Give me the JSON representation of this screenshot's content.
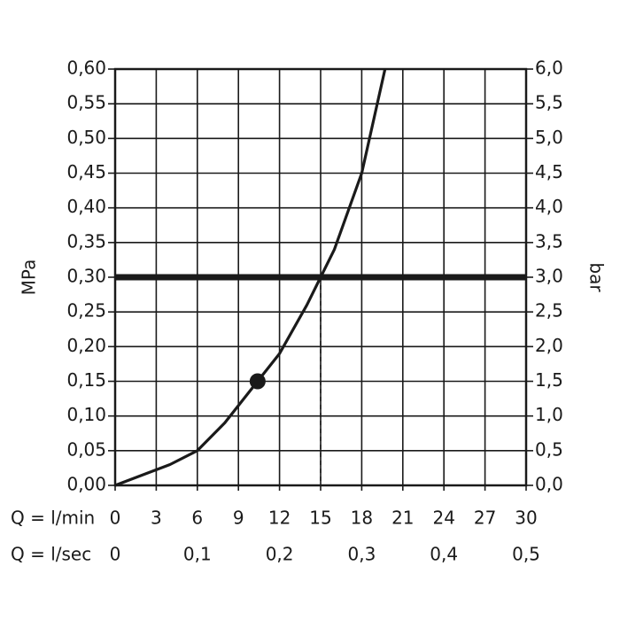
{
  "chart_data": {
    "type": "line",
    "ylabel": "MPa",
    "y2label": "bar",
    "xlabel": "Q = l/min",
    "x2label": "Q = l/sec",
    "series": [
      {
        "color": "#1a1a1a",
        "x": [
          0,
          2,
          4,
          6,
          8,
          10,
          12,
          14,
          15,
          16,
          18,
          19.7
        ],
        "values": [
          0,
          0.015,
          0.03,
          0.05,
          0.09,
          0.14,
          0.19,
          0.26,
          0.3,
          0.34,
          0.45,
          0.6
        ]
      }
    ],
    "highlight": {
      "x": 10.4,
      "y": 0.15
    },
    "hline": 0.3,
    "vline": 15,
    "xlim": [
      0,
      30
    ],
    "xticks": [
      0,
      3,
      6,
      9,
      12,
      15,
      18,
      21,
      24,
      27,
      30
    ],
    "x2lim": [
      0,
      0.5
    ],
    "x2ticks": [
      0,
      {
        "value": 0.1,
        "label": "0,1"
      },
      {
        "value": 0.2,
        "label": "0,2"
      },
      {
        "value": 0.3,
        "label": "0,3"
      },
      {
        "value": 0.4,
        "label": "0,4"
      },
      {
        "value": 0.5,
        "label": "0,5"
      }
    ],
    "ylim": [
      0,
      0.6
    ],
    "yticks": [
      {
        "value": 0,
        "label": "0,00"
      },
      {
        "value": 0.05,
        "label": "0,05"
      },
      {
        "value": 0.1,
        "label": "0,10"
      },
      {
        "value": 0.15,
        "label": "0,15"
      },
      {
        "value": 0.2,
        "label": "0,20"
      },
      {
        "value": 0.25,
        "label": "0,25"
      },
      {
        "value": 0.3,
        "label": "0,30"
      },
      {
        "value": 0.35,
        "label": "0,35"
      },
      {
        "value": 0.4,
        "label": "0,40"
      },
      {
        "value": 0.45,
        "label": "0,45"
      },
      {
        "value": 0.5,
        "label": "0,50"
      },
      {
        "value": 0.55,
        "label": "0,55"
      },
      {
        "value": 0.6,
        "label": "0,60"
      }
    ],
    "y2lim": [
      0,
      6
    ],
    "y2ticks": [
      {
        "value": 0,
        "label": "0,0"
      },
      {
        "value": 0.5,
        "label": "0,5"
      },
      {
        "value": 1,
        "label": "1,0"
      },
      {
        "value": 1.5,
        "label": "1,5"
      },
      {
        "value": 2,
        "label": "2,0"
      },
      {
        "value": 2.5,
        "label": "2,5"
      },
      {
        "value": 3,
        "label": "3,0"
      },
      {
        "value": 3.5,
        "label": "3,5"
      },
      {
        "value": 4,
        "label": "4,0"
      },
      {
        "value": 4.5,
        "label": "4,5"
      },
      {
        "value": 5,
        "label": "5,0"
      },
      {
        "value": 5.5,
        "label": "5,5"
      },
      {
        "value": 6,
        "label": "6,0"
      }
    ],
    "grid": true
  }
}
